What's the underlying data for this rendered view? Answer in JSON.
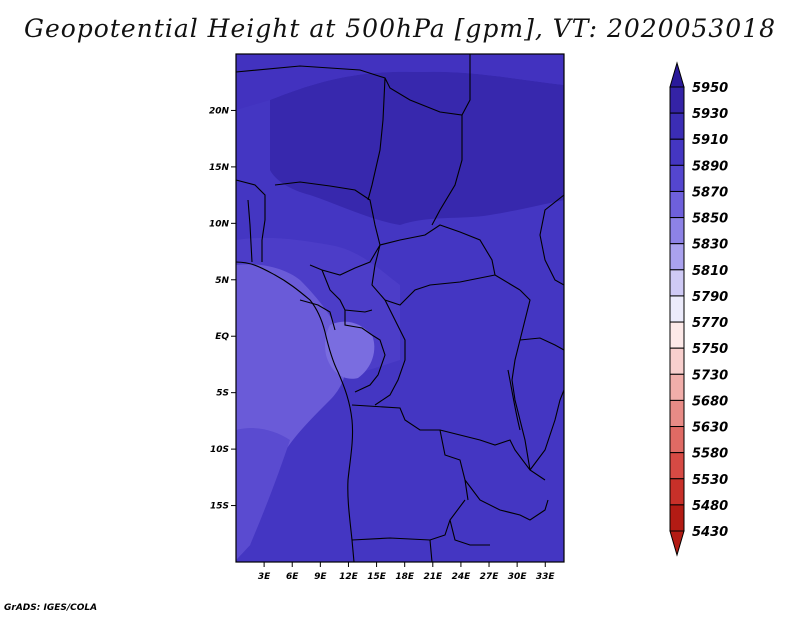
{
  "title": "Geopotential Height at 500hPa [gpm], VT: 2020053018",
  "credit": "GrADS: IGES/COLA",
  "lat_labels": [
    "20N",
    "15N",
    "10N",
    "5N",
    "EQ",
    "5S",
    "10S",
    "15S"
  ],
  "lat_values": [
    20,
    15,
    10,
    5,
    0,
    -5,
    -10,
    -15
  ],
  "lon_labels": [
    "3E",
    "6E",
    "9E",
    "12E",
    "15E",
    "18E",
    "21E",
    "24E",
    "27E",
    "30E",
    "33E"
  ],
  "lon_values": [
    3,
    6,
    9,
    12,
    15,
    18,
    21,
    24,
    27,
    30,
    33
  ],
  "extent": {
    "lon_min": 0,
    "lon_max": 35,
    "lat_min": -20,
    "lat_max": 25
  },
  "colorbar": {
    "labels": [
      "5950",
      "5930",
      "5910",
      "5890",
      "5870",
      "5850",
      "5830",
      "5810",
      "5790",
      "5770",
      "5750",
      "5730",
      "5680",
      "5630",
      "5580",
      "5530",
      "5480",
      "5430"
    ],
    "colors": [
      "#2a1a9a",
      "#3423a6",
      "#3b2db5",
      "#4436c2",
      "#5446cf",
      "#6e60dc",
      "#8d82e6",
      "#aaa2ee",
      "#cfcaf5",
      "#ecebfb",
      "#fde9e8",
      "#f8cfcd",
      "#f1aeaa",
      "#e88b86",
      "#df6a64",
      "#d64a44",
      "#c83029",
      "#b31b14"
    ]
  },
  "field_colors": {
    "max_zone": "#3728ad",
    "upper_zone": "#4232bf",
    "middle_zone": "#4436c2",
    "lower_zone": "#4c3dc8",
    "west_zone": "#6a5bd8",
    "southwest_zone": "#5a4bd0",
    "light_zone": "#7a6de0"
  }
}
